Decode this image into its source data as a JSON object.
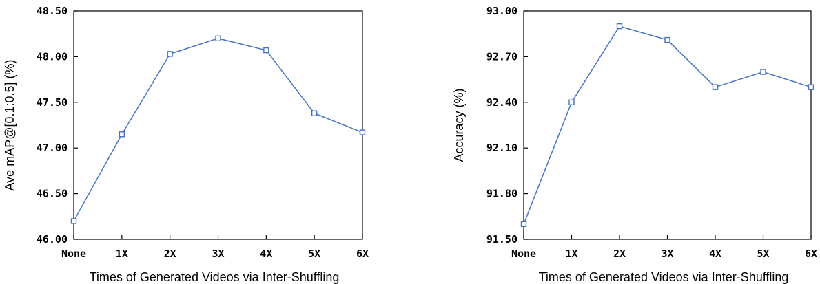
{
  "chart_data": [
    {
      "type": "line",
      "categories": [
        "None",
        "1X",
        "2X",
        "3X",
        "4X",
        "5X",
        "6X"
      ],
      "y_tick_labels": [
        "46.00",
        "46.50",
        "47.00",
        "47.50",
        "48.00",
        "48.50"
      ],
      "series": [
        {
          "values": [
            46.2,
            47.15,
            48.03,
            48.2,
            48.07,
            47.38,
            47.17
          ]
        }
      ],
      "xlabel": "Times of Generated Videos via Inter-Shuffling",
      "ylabel": "Ave mAP@[0.1:0.5] (%)",
      "ylim": [
        46.0,
        48.5
      ],
      "line_color": "#4472c4",
      "marker": "square-hollow",
      "grid": false
    },
    {
      "type": "line",
      "categories": [
        "None",
        "1X",
        "2X",
        "3X",
        "4X",
        "5X",
        "6X"
      ],
      "y_tick_labels": [
        "91.50",
        "91.80",
        "92.10",
        "92.40",
        "92.70",
        "93.00"
      ],
      "series": [
        {
          "values": [
            91.6,
            92.4,
            92.9,
            92.81,
            92.5,
            92.6,
            92.5
          ]
        }
      ],
      "xlabel": "Times of Generated Videos via Inter-Shuffling",
      "ylabel": "Accuracy (%)",
      "ylim": [
        91.5,
        93.0
      ],
      "line_color": "#4472c4",
      "marker": "square-hollow",
      "grid": false
    }
  ]
}
